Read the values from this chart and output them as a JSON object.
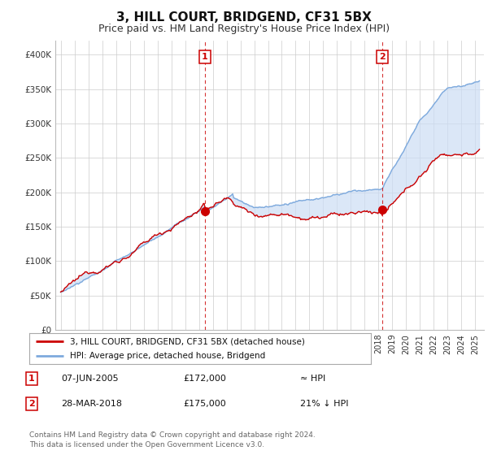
{
  "title": "3, HILL COURT, BRIDGEND, CF31 5BX",
  "subtitle": "Price paid vs. HM Land Registry's House Price Index (HPI)",
  "ylim": [
    0,
    420000
  ],
  "yticks": [
    0,
    50000,
    100000,
    150000,
    200000,
    250000,
    300000,
    350000,
    400000
  ],
  "xlim_start": 1994.6,
  "xlim_end": 2025.6,
  "sale1_date": 2005.44,
  "sale1_price": 172000,
  "sale2_date": 2018.24,
  "sale2_price": 175000,
  "hpi_color": "#7eaadd",
  "hpi_fill_color": "#ccddf5",
  "price_color": "#cc0000",
  "sale_line_color": "#cc0000",
  "legend_text1": "3, HILL COURT, BRIDGEND, CF31 5BX (detached house)",
  "legend_text2": "HPI: Average price, detached house, Bridgend",
  "annotation1_label": "1",
  "annotation1_date": "07-JUN-2005",
  "annotation1_price": "£172,000",
  "annotation1_hpi": "≈ HPI",
  "annotation2_label": "2",
  "annotation2_date": "28-MAR-2018",
  "annotation2_price": "£175,000",
  "annotation2_hpi": "21% ↓ HPI",
  "footer": "Contains HM Land Registry data © Crown copyright and database right 2024.\nThis data is licensed under the Open Government Licence v3.0.",
  "title_fontsize": 11,
  "subtitle_fontsize": 9,
  "background_color": "#ffffff",
  "grid_color": "#cccccc"
}
